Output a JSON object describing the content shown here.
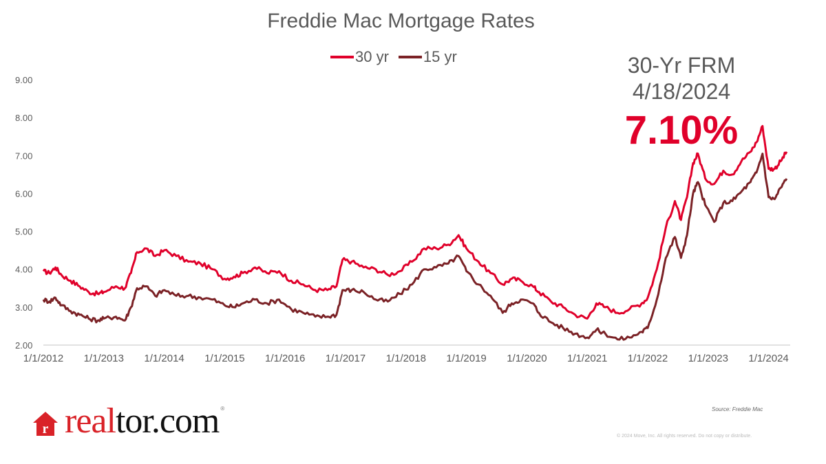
{
  "title": "Freddie Mac Mortgage Rates",
  "legend": [
    {
      "label": "30 yr",
      "color": "#e0002a"
    },
    {
      "label": "15 yr",
      "color": "#7b2226"
    }
  ],
  "callout": {
    "line1": "30-Yr FRM",
    "line2": "4/18/2024",
    "value": "7.10%"
  },
  "footer": {
    "logo_real": "real",
    "logo_tor": "tor.com",
    "logo_reg": "®",
    "source": "Source:  Freddie Mac",
    "copyright": "© 2024 Move, Inc. All rights reserved. Do not copy or distribute."
  },
  "chart_data": {
    "type": "line",
    "title": "Freddie Mac Mortgage Rates",
    "xlabel": "",
    "ylabel": "",
    "ylim": [
      2.0,
      9.0
    ],
    "yticks": [
      "2.00",
      "3.00",
      "4.00",
      "5.00",
      "6.00",
      "7.00",
      "8.00",
      "9.00"
    ],
    "xticks": [
      "1/1/2012",
      "1/1/2013",
      "1/1/2014",
      "1/1/2015",
      "1/1/2016",
      "1/1/2017",
      "1/1/2018",
      "1/1/2019",
      "1/1/2020",
      "1/1/2021",
      "1/1/2022",
      "1/1/2023",
      "1/1/2024"
    ],
    "grid": false,
    "legend_position": "top",
    "x": [
      2012.0,
      2012.1,
      2012.2,
      2012.3,
      2012.45,
      2012.6,
      2012.75,
      2012.9,
      2013.0,
      2013.2,
      2013.35,
      2013.45,
      2013.55,
      2013.7,
      2013.85,
      2014.0,
      2014.2,
      2014.4,
      2014.6,
      2014.8,
      2015.0,
      2015.15,
      2015.3,
      2015.5,
      2015.7,
      2015.9,
      2016.1,
      2016.3,
      2016.5,
      2016.7,
      2016.85,
      2016.95,
      2017.1,
      2017.3,
      2017.5,
      2017.7,
      2017.9,
      2018.1,
      2018.3,
      2018.5,
      2018.7,
      2018.87,
      2019.0,
      2019.2,
      2019.4,
      2019.6,
      2019.75,
      2019.9,
      2020.1,
      2020.2,
      2020.4,
      2020.6,
      2020.8,
      2021.0,
      2021.15,
      2021.3,
      2021.5,
      2021.7,
      2021.9,
      2022.0,
      2022.15,
      2022.3,
      2022.45,
      2022.55,
      2022.65,
      2022.75,
      2022.83,
      2022.95,
      2023.1,
      2023.25,
      2023.4,
      2023.55,
      2023.7,
      2023.8,
      2023.9,
      2024.0,
      2024.1,
      2024.2,
      2024.3
    ],
    "series": [
      {
        "name": "30 yr",
        "color": "#e0002a",
        "values": [
          3.95,
          3.9,
          4.05,
          3.85,
          3.7,
          3.55,
          3.4,
          3.35,
          3.4,
          3.55,
          3.5,
          3.9,
          4.45,
          4.55,
          4.35,
          4.5,
          4.35,
          4.2,
          4.15,
          4.0,
          3.75,
          3.8,
          3.9,
          4.05,
          3.9,
          3.95,
          3.7,
          3.6,
          3.45,
          3.45,
          3.55,
          4.25,
          4.2,
          4.05,
          4.0,
          3.85,
          3.95,
          4.2,
          4.55,
          4.55,
          4.65,
          4.9,
          4.55,
          4.2,
          3.9,
          3.6,
          3.75,
          3.7,
          3.55,
          3.4,
          3.15,
          3.0,
          2.8,
          2.7,
          3.1,
          3.0,
          2.85,
          2.95,
          3.1,
          3.25,
          4.0,
          5.1,
          5.8,
          5.3,
          5.9,
          6.8,
          7.05,
          6.4,
          6.25,
          6.6,
          6.5,
          6.85,
          7.1,
          7.35,
          7.78,
          6.65,
          6.65,
          6.85,
          7.1
        ]
      },
      {
        "name": "15 yr",
        "color": "#7b2226",
        "values": [
          3.2,
          3.15,
          3.25,
          3.05,
          2.9,
          2.8,
          2.7,
          2.65,
          2.7,
          2.75,
          2.65,
          3.0,
          3.5,
          3.55,
          3.3,
          3.45,
          3.3,
          3.3,
          3.25,
          3.2,
          3.05,
          3.0,
          3.1,
          3.2,
          3.1,
          3.2,
          2.95,
          2.85,
          2.75,
          2.75,
          2.8,
          3.45,
          3.45,
          3.4,
          3.2,
          3.15,
          3.35,
          3.6,
          4.0,
          4.05,
          4.15,
          4.35,
          3.95,
          3.6,
          3.3,
          2.85,
          3.1,
          3.2,
          3.1,
          2.85,
          2.6,
          2.45,
          2.3,
          2.2,
          2.4,
          2.3,
          2.15,
          2.2,
          2.35,
          2.45,
          3.2,
          4.3,
          4.85,
          4.3,
          4.9,
          6.0,
          6.3,
          5.7,
          5.25,
          5.75,
          5.8,
          6.05,
          6.3,
          6.55,
          7.05,
          5.9,
          5.85,
          6.15,
          6.39
        ]
      }
    ],
    "annotation": {
      "label": "30-Yr FRM 4/18/2024",
      "value": "7.10%"
    }
  }
}
